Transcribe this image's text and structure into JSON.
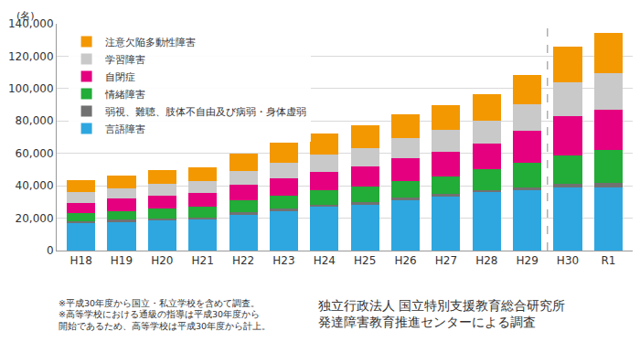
{
  "chart_data": {
    "type": "bar",
    "stacked": true,
    "ylabel": "(名)",
    "categories": [
      "H18",
      "H19",
      "H20",
      "H21",
      "H22",
      "H23",
      "H24",
      "H25",
      "H26",
      "H27",
      "H28",
      "H29",
      "H30",
      "R1"
    ],
    "series": [
      {
        "name": "言語障害",
        "color": "#2ea7e0",
        "values": [
          17000,
          18000,
          19000,
          19500,
          22500,
          24500,
          27000,
          28500,
          31000,
          33500,
          36000,
          37000,
          39000,
          39000
        ]
      },
      {
        "name": "弱視、難聴、肢体不自由及び病弱・身体虚弱",
        "color": "#727171",
        "values": [
          1000,
          1000,
          1000,
          1000,
          1000,
          1500,
          1500,
          1500,
          1500,
          1500,
          1500,
          2000,
          2000,
          2500
        ]
      },
      {
        "name": "情緒障害",
        "color": "#22ac38",
        "values": [
          5000,
          5500,
          6000,
          6500,
          7500,
          8000,
          8500,
          9500,
          10500,
          11000,
          12500,
          15000,
          17500,
          20500
        ]
      },
      {
        "name": "自閉症",
        "color": "#e4007f",
        "values": [
          6500,
          7500,
          8000,
          8500,
          9500,
          10500,
          11500,
          12500,
          14000,
          15000,
          16000,
          20000,
          24500,
          25000
        ]
      },
      {
        "name": "学習障害",
        "color": "#c9c9c9",
        "values": [
          6500,
          6500,
          7000,
          7500,
          8500,
          9500,
          10500,
          11500,
          12500,
          13500,
          14000,
          16500,
          21000,
          22500
        ]
      },
      {
        "name": "注意欠陥多動性障害",
        "color": "#f39800",
        "values": [
          7500,
          8000,
          8500,
          8500,
          11000,
          12500,
          13000,
          14000,
          14500,
          15500,
          16500,
          18000,
          22000,
          25000
        ]
      }
    ],
    "ylim": [
      0,
      140000
    ],
    "yticks": [
      0,
      {
        "value": 20000,
        "label": "20,000"
      },
      {
        "value": 40000,
        "label": "40,000"
      },
      {
        "value": 60000,
        "label": "60,000"
      },
      {
        "value": 80000,
        "label": "80,000"
      },
      {
        "value": 100000,
        "label": "100,000"
      },
      {
        "value": 120000,
        "label": "120,000"
      },
      {
        "value": 140000,
        "label": "140,000"
      }
    ],
    "grid": true,
    "legend": "top left",
    "notes": [
      "※平成30年度から国立・私立学校を含めて調査。",
      "※高等学校における通級の指導は平成30年度から",
      "開始であるため、高等学校は平成30年度から計上。"
    ],
    "source": [
      "独立行政法人 国立特別支援教育総合研究所",
      "発達障害教育推進センターによる調査"
    ]
  }
}
